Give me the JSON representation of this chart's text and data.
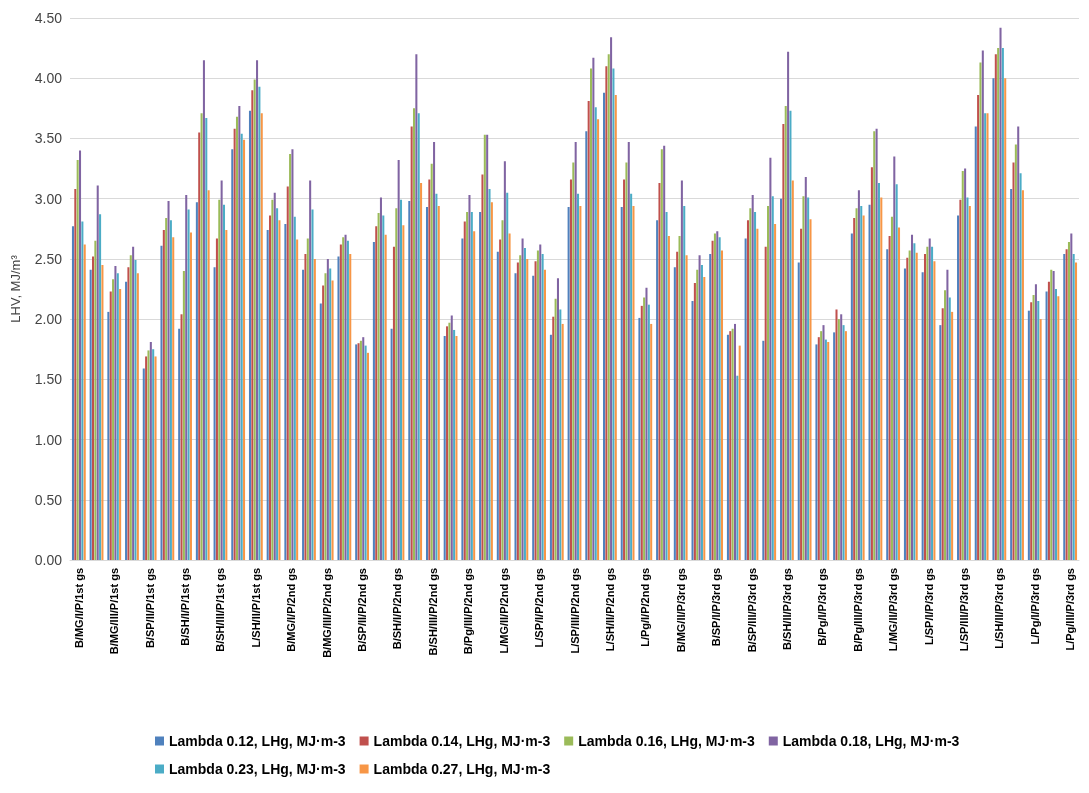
{
  "chart_data": {
    "type": "bar",
    "ylabel": "LHV, MJ/m³",
    "categories": [
      "B/MG/I/P/1st gs",
      null,
      "B/MG/III/P/1st gs",
      null,
      "B/SP/II/P/1st gs",
      null,
      "B/SH/I/P/1st gs",
      null,
      "B/SH/III/P/1st gs",
      null,
      "L/SH/II/P/1st gs",
      null,
      "B/MG/I/P/2nd gs",
      null,
      "B/MG/III/P/2nd gs",
      null,
      "B/SP/II/P/2nd gs",
      null,
      "B/SH/I/P/2nd gs",
      null,
      "B/SH/III/P/2nd gs",
      null,
      "B/Pg/III/P/2nd gs",
      null,
      "L/MG/II/P/2nd gs",
      null,
      "L/SP/I/P/2nd gs",
      null,
      "L/SP/III/P/2nd gs",
      null,
      "L/SH/II/P/2nd gs",
      null,
      "L/Pg/I/P/2nd gs",
      null,
      "B/MG/II/P/3rd gs",
      null,
      "B/SP/I/P/3rd gs",
      null,
      "B/SP/III/P/3rd gs",
      null,
      "B/SH/II/P/3rd gs",
      null,
      "B/Pg/I/P/3rd gs",
      null,
      "B/Pg/III/P/3rd gs",
      null,
      "L/MG/II/P/3rd gs",
      null,
      "L/SP/I/P/3rd gs",
      null,
      "L/SP/III/P/3rd gs",
      null,
      "L/SH/II/P/3rd gs",
      null,
      "L/Pg/I/P/3rd gs",
      null,
      "L/Pg/III/P/3rd gs"
    ],
    "series": [
      {
        "name": "Lambda 0.12, LHg, MJ·m-3",
        "color": "#4f81bd",
        "values": [
          2.77,
          2.41,
          2.06,
          2.31,
          1.59,
          2.61,
          1.92,
          2.97,
          2.43,
          3.41,
          3.73,
          2.74,
          2.79,
          2.41,
          2.13,
          2.52,
          1.79,
          2.64,
          1.92,
          2.98,
          2.93,
          1.86,
          2.67,
          2.89,
          2.56,
          2.38,
          2.36,
          1.87,
          2.93,
          3.56,
          3.88,
          2.93,
          2.01,
          2.82,
          2.43,
          2.15,
          2.54,
          1.87,
          2.67,
          1.82,
          3.0,
          2.47,
          1.79,
          1.89,
          2.71,
          2.95,
          2.58,
          2.42,
          2.39,
          1.95,
          2.86,
          3.6,
          4.0,
          3.08,
          2.07,
          2.23,
          2.54
        ]
      },
      {
        "name": "Lambda 0.14, LHg, MJ·m-3",
        "color": "#c0504d",
        "values": [
          3.08,
          2.52,
          2.23,
          2.43,
          1.69,
          2.74,
          2.04,
          3.55,
          2.67,
          3.58,
          3.9,
          2.86,
          3.1,
          2.54,
          2.28,
          2.62,
          1.8,
          2.77,
          2.6,
          3.6,
          3.16,
          1.94,
          2.81,
          3.2,
          2.66,
          2.47,
          2.48,
          2.02,
          3.16,
          3.81,
          4.1,
          3.16,
          2.11,
          3.13,
          2.56,
          2.3,
          2.65,
          1.9,
          2.82,
          2.6,
          3.62,
          2.75,
          1.85,
          2.08,
          2.84,
          3.26,
          2.69,
          2.51,
          2.54,
          2.09,
          2.99,
          3.86,
          4.2,
          3.3,
          2.14,
          2.31,
          2.58
        ]
      },
      {
        "name": "Lambda 0.16, LHg, MJ·m-3",
        "color": "#9bbb59",
        "values": [
          3.32,
          2.65,
          2.33,
          2.53,
          1.74,
          2.84,
          2.4,
          3.71,
          2.99,
          3.68,
          3.99,
          2.99,
          3.37,
          2.67,
          2.38,
          2.68,
          1.82,
          2.88,
          2.92,
          3.75,
          3.29,
          1.97,
          2.89,
          3.53,
          2.82,
          2.53,
          2.57,
          2.17,
          3.3,
          4.08,
          4.2,
          3.3,
          2.18,
          3.41,
          2.69,
          2.41,
          2.71,
          1.92,
          2.92,
          2.94,
          3.77,
          3.02,
          1.9,
          2.0,
          2.92,
          3.56,
          2.85,
          2.57,
          2.6,
          2.24,
          3.23,
          4.13,
          4.25,
          3.45,
          2.2,
          2.41,
          2.64
        ]
      },
      {
        "name": "Lambda 0.18, LHg, MJ·m-3",
        "color": "#8064a2",
        "values": [
          3.4,
          3.11,
          2.44,
          2.6,
          1.81,
          2.98,
          3.03,
          4.15,
          3.15,
          3.77,
          4.15,
          3.05,
          3.41,
          3.15,
          2.5,
          2.7,
          1.85,
          3.01,
          3.32,
          4.2,
          3.47,
          2.03,
          3.03,
          3.53,
          3.31,
          2.67,
          2.62,
          2.34,
          3.47,
          4.17,
          4.34,
          3.47,
          2.26,
          3.44,
          3.15,
          2.53,
          2.73,
          1.96,
          3.03,
          3.34,
          4.22,
          3.18,
          1.95,
          2.04,
          3.07,
          3.58,
          3.35,
          2.7,
          2.67,
          2.41,
          3.25,
          4.23,
          4.42,
          3.6,
          2.29,
          2.4,
          2.71
        ]
      },
      {
        "name": "Lambda 0.23, LHg, MJ·m-3",
        "color": "#4bacc6",
        "values": [
          2.81,
          2.87,
          2.38,
          2.49,
          1.75,
          2.82,
          2.91,
          3.67,
          2.95,
          3.54,
          3.93,
          2.92,
          2.85,
          2.91,
          2.42,
          2.65,
          1.78,
          2.86,
          2.99,
          3.71,
          3.04,
          1.91,
          2.89,
          3.08,
          3.05,
          2.59,
          2.54,
          2.08,
          3.04,
          3.76,
          4.08,
          3.04,
          2.12,
          2.89,
          2.94,
          2.45,
          2.68,
          1.53,
          2.89,
          3.02,
          3.73,
          3.01,
          1.83,
          1.95,
          2.94,
          3.13,
          3.12,
          2.63,
          2.6,
          2.18,
          3.01,
          3.71,
          4.25,
          3.21,
          2.15,
          2.25,
          2.54
        ]
      },
      {
        "name": "Lambda 0.27, LHg, MJ·m-3",
        "color": "#f79646",
        "values": [
          2.62,
          2.45,
          2.25,
          2.38,
          1.69,
          2.68,
          2.72,
          3.07,
          2.74,
          3.49,
          3.71,
          2.82,
          2.66,
          2.5,
          2.32,
          2.54,
          1.72,
          2.7,
          2.78,
          3.13,
          2.94,
          1.86,
          2.73,
          2.97,
          2.71,
          2.5,
          2.41,
          1.96,
          2.94,
          3.66,
          3.86,
          2.94,
          1.96,
          2.69,
          2.53,
          2.35,
          2.57,
          1.78,
          2.75,
          2.79,
          3.15,
          2.83,
          1.81,
          1.9,
          2.86,
          3.01,
          2.76,
          2.55,
          2.48,
          2.06,
          2.94,
          3.71,
          4.0,
          3.07,
          2.0,
          2.19,
          2.47
        ]
      }
    ],
    "ylim": [
      0,
      4.5
    ],
    "yticks": [
      {
        "value": 0,
        "label": "0.00"
      },
      {
        "value": 0.5,
        "label": "0.50"
      },
      {
        "value": 1,
        "label": "1.00"
      },
      {
        "value": 1.5,
        "label": "1.50"
      },
      {
        "value": 2,
        "label": "2.00"
      },
      {
        "value": 2.5,
        "label": "2.50"
      },
      {
        "value": 3,
        "label": "3.00"
      },
      {
        "value": 3.5,
        "label": "3.50"
      },
      {
        "value": 4,
        "label": "4.00"
      },
      {
        "value": 4.5,
        "label": "4.50"
      }
    ],
    "grid": "y",
    "legend": "bottom"
  }
}
